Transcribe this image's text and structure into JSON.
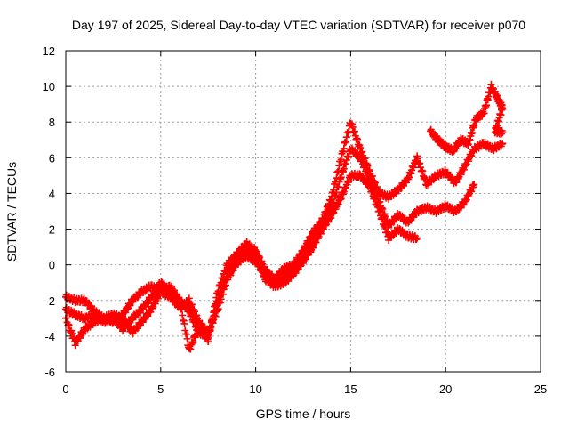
{
  "chart_data": {
    "type": "scatter",
    "title": "Day 197 of 2025, Sidereal Day-to-day VTEC variation (SDTVAR) for receiver p070",
    "xlabel": "GPS time / hours",
    "ylabel": "SDTVAR / TECUs",
    "xlim": [
      0,
      25
    ],
    "ylim": [
      -6,
      12
    ],
    "xticks": [
      0,
      5,
      10,
      15,
      20,
      25
    ],
    "yticks": [
      -6,
      -4,
      -2,
      0,
      2,
      4,
      6,
      8,
      10,
      12
    ],
    "x_tick_labels": [
      "0",
      "5",
      "10",
      "15",
      "20",
      "25"
    ],
    "y_tick_labels": [
      "-6",
      "-4",
      "-2",
      "0",
      "2",
      "4",
      "6",
      "8",
      "10",
      "12"
    ],
    "grid": true,
    "marker": "+",
    "color": "#ff0000",
    "series": [
      {
        "points": [
          [
            0,
            -1.8
          ],
          [
            0.5,
            -2.0
          ],
          [
            1.0,
            -2.0
          ],
          [
            1.5,
            -2.6
          ],
          [
            2.0,
            -3.0
          ],
          [
            2.5,
            -3.2
          ],
          [
            3.0,
            -2.8
          ],
          [
            3.5,
            -2.0
          ],
          [
            4.0,
            -1.5
          ],
          [
            4.5,
            -1.2
          ],
          [
            5.0,
            -1.5
          ],
          [
            5.5,
            -1.8
          ],
          [
            6.0,
            -2.4
          ],
          [
            6.5,
            -2.0
          ],
          [
            7.0,
            -3.2
          ],
          [
            7.5,
            -3.8
          ],
          [
            8.0,
            -2.5
          ],
          [
            8.5,
            -0.8
          ],
          [
            9.0,
            0.1
          ],
          [
            9.5,
            0.5
          ],
          [
            10.0,
            0.2
          ],
          [
            10.5,
            -0.5
          ],
          [
            11.0,
            -1.0
          ],
          [
            11.5,
            -0.6
          ],
          [
            12.0,
            -0.3
          ],
          [
            12.5,
            0.5
          ],
          [
            13.0,
            1.5
          ],
          [
            13.5,
            2.2
          ],
          [
            14.0,
            3.2
          ],
          [
            14.5,
            5.0
          ],
          [
            15.0,
            6.5
          ],
          [
            15.5,
            6.0
          ],
          [
            16.0,
            4.8
          ],
          [
            16.5,
            3.5
          ],
          [
            17.0,
            2.2
          ],
          [
            17.5,
            2.8
          ],
          [
            18.0,
            2.4
          ],
          [
            18.5,
            3.0
          ],
          [
            19.0,
            3.2
          ],
          [
            19.5,
            3.0
          ],
          [
            20.0,
            3.3
          ],
          [
            20.5,
            3.0
          ],
          [
            21.0,
            3.5
          ],
          [
            21.5,
            4.5
          ]
        ]
      },
      {
        "points": [
          [
            0,
            -2.5
          ],
          [
            0.5,
            -2.8
          ],
          [
            1.0,
            -3.0
          ],
          [
            1.5,
            -2.8
          ],
          [
            2.0,
            -3.2
          ],
          [
            2.5,
            -3.0
          ],
          [
            3.0,
            -3.6
          ],
          [
            3.5,
            -3.0
          ],
          [
            4.0,
            -2.5
          ],
          [
            4.5,
            -1.8
          ],
          [
            5.0,
            -1.0
          ],
          [
            5.5,
            -1.5
          ],
          [
            6.0,
            -2.0
          ],
          [
            6.5,
            -2.6
          ],
          [
            7.0,
            -3.8
          ],
          [
            7.5,
            -4.0
          ],
          [
            8.0,
            -2.0
          ],
          [
            8.5,
            -0.5
          ],
          [
            9.0,
            0.3
          ],
          [
            9.5,
            0.8
          ],
          [
            10.0,
            0.4
          ],
          [
            10.5,
            -0.8
          ],
          [
            11.0,
            -1.2
          ],
          [
            11.5,
            -1.0
          ],
          [
            12.0,
            -0.5
          ],
          [
            12.5,
            0.2
          ],
          [
            13.0,
            1.0
          ],
          [
            13.5,
            2.0
          ],
          [
            14.0,
            2.8
          ],
          [
            14.5,
            3.8
          ],
          [
            15.0,
            5.0
          ],
          [
            15.5,
            5.0
          ],
          [
            16.0,
            4.4
          ],
          [
            16.5,
            3.0
          ],
          [
            17.0,
            1.5
          ],
          [
            17.5,
            2.0
          ],
          [
            18.0,
            1.6
          ],
          [
            18.5,
            1.5
          ]
        ]
      },
      {
        "points": [
          [
            0,
            -3.0
          ],
          [
            0.5,
            -4.4
          ],
          [
            1.0,
            -3.6
          ],
          [
            1.5,
            -3.2
          ],
          [
            2.0,
            -3.0
          ],
          [
            2.5,
            -2.8
          ],
          [
            3.0,
            -3.0
          ],
          [
            3.5,
            -3.8
          ],
          [
            4.0,
            -3.2
          ],
          [
            4.5,
            -2.5
          ],
          [
            5.0,
            -1.5
          ],
          [
            5.5,
            -1.2
          ],
          [
            6.0,
            -2.0
          ],
          [
            6.5,
            -4.8
          ],
          [
            7.0,
            -3.5
          ],
          [
            7.5,
            -4.2
          ],
          [
            8.0,
            -1.5
          ],
          [
            8.5,
            0.0
          ],
          [
            9.0,
            0.6
          ],
          [
            9.5,
            1.2
          ],
          [
            10.0,
            0.8
          ],
          [
            10.5,
            -0.3
          ],
          [
            11.0,
            -0.8
          ],
          [
            11.5,
            -0.2
          ],
          [
            12.0,
            0.0
          ],
          [
            12.5,
            0.8
          ],
          [
            13.0,
            1.8
          ],
          [
            13.5,
            2.5
          ],
          [
            14.0,
            3.8
          ],
          [
            14.5,
            6.0
          ],
          [
            15.0,
            8.0
          ],
          [
            15.5,
            6.5
          ],
          [
            16.0,
            5.2
          ],
          [
            16.5,
            4.0
          ],
          [
            17.0,
            3.8
          ],
          [
            17.5,
            4.2
          ],
          [
            18.0,
            4.8
          ],
          [
            18.5,
            6.0
          ],
          [
            19.0,
            4.5
          ],
          [
            19.5,
            5.0
          ],
          [
            20.0,
            5.2
          ],
          [
            20.5,
            4.6
          ],
          [
            21.0,
            5.5
          ],
          [
            21.5,
            6.5
          ],
          [
            22.0,
            6.8
          ],
          [
            22.5,
            6.5
          ],
          [
            23.0,
            6.8
          ]
        ]
      },
      {
        "points": [
          [
            19.2,
            7.5
          ],
          [
            19.6,
            7.0
          ],
          [
            20.0,
            6.6
          ],
          [
            20.4,
            6.4
          ],
          [
            20.8,
            7.0
          ],
          [
            21.2,
            6.8
          ],
          [
            21.6,
            8.2
          ],
          [
            22.0,
            8.5
          ],
          [
            22.4,
            10.0
          ],
          [
            22.8,
            9.2
          ],
          [
            23.0,
            8.8
          ],
          [
            22.6,
            7.5
          ],
          [
            23.0,
            7.4
          ]
        ]
      }
    ]
  }
}
